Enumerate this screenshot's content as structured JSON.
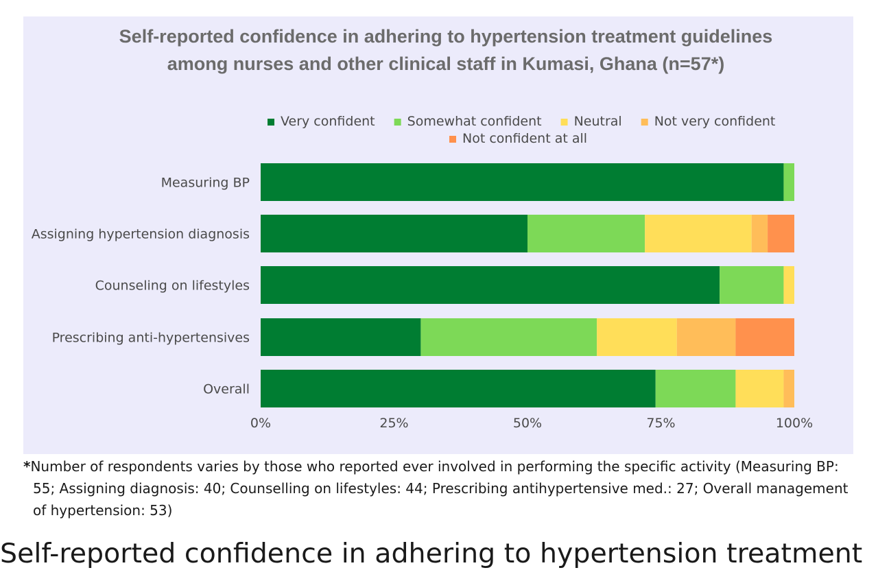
{
  "chart_data": {
    "type": "bar",
    "orientation": "horizontal",
    "stacked": true,
    "normalized": "percent",
    "title": "Self-reported confidence in adhering to hypertension treatment guidelines among nurses and other  clinical staff in Kumasi, Ghana (n=57*)",
    "title_lines": [
      "Self-reported confidence in adhering to hypertension treatment guidelines",
      "among nurses and other  clinical staff in Kumasi, Ghana (n=57*)"
    ],
    "categories": [
      "Measuring BP",
      "Assigning hypertension diagnosis",
      "Counseling on lifestyles",
      "Prescribing anti-hypertensives",
      "Overall"
    ],
    "series": [
      {
        "name": "Very confident",
        "color": "#007d32",
        "values": [
          98,
          50,
          86,
          30,
          74
        ]
      },
      {
        "name": "Somewhat confident",
        "color": "#7dd957",
        "values": [
          2,
          22,
          12,
          33,
          15
        ]
      },
      {
        "name": "Neutral",
        "color": "#ffde59",
        "values": [
          0,
          20,
          2,
          15,
          9
        ]
      },
      {
        "name": "Not very confident",
        "color": "#ffbd59",
        "values": [
          0,
          3,
          0,
          11,
          2
        ]
      },
      {
        "name": "Not confident at all",
        "color": "#ff914d",
        "values": [
          0,
          5,
          0,
          11,
          0
        ]
      }
    ],
    "x_ticks": [
      "0%",
      "25%",
      "50%",
      "75%",
      "100%"
    ],
    "xlim": [
      0,
      100
    ],
    "grid": false,
    "legend_position": "top",
    "background": "#ecebfb"
  },
  "footnote": {
    "star": "*",
    "text": "Number of respondents varies by those who reported ever involved in performing the specific activity (Measuring BP: 55; Assigning diagnosis: 40; Counselling on lifestyles: 44; Prescribing antihypertensive med.: 27; Overall management of hypertension: 53)"
  },
  "caption": "Self-reported confidence in adhering to hypertension treatment"
}
